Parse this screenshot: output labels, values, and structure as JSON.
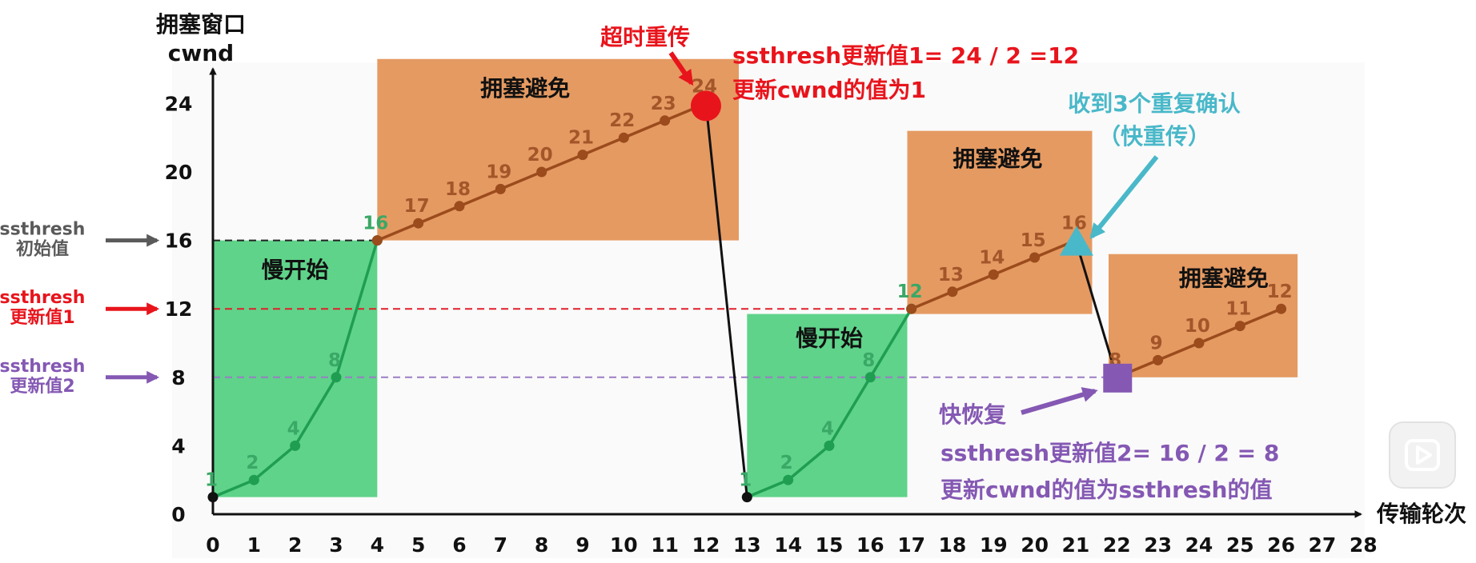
{
  "chart_data": {
    "type": "line",
    "y_title_line1": "拥塞窗口",
    "y_title_line2": "cwnd",
    "x_title": "传输轮次",
    "xlim": [
      0,
      28
    ],
    "ylim": [
      0,
      24
    ],
    "x_ticks": [
      "0",
      "1",
      "2",
      "3",
      "4",
      "5",
      "6",
      "7",
      "8",
      "9",
      "10",
      "11",
      "12",
      "13",
      "14",
      "15",
      "16",
      "17",
      "18",
      "19",
      "20",
      "21",
      "22",
      "23",
      "24",
      "25",
      "26",
      "27",
      "28"
    ],
    "y_ticks": [
      "0",
      "4",
      "8",
      "12",
      "16",
      "20",
      "24"
    ],
    "colors": {
      "slow_start": "#5fd38a",
      "congestion_avoidance": "#e59a62",
      "ss_line": "#1f9e52",
      "ca_line": "#9b4b1c",
      "timeout": "#e8141c",
      "fast_retx": "#49b8c9",
      "fast_recovery": "#8458b3",
      "ssthresh_init": "#5a5a5a"
    },
    "series": [
      {
        "segment": "slow-start-1",
        "points": [
          {
            "x": 0,
            "y": 1,
            "label": "1"
          },
          {
            "x": 1,
            "y": 2,
            "label": "2"
          },
          {
            "x": 2,
            "y": 4,
            "label": "4"
          },
          {
            "x": 3,
            "y": 8,
            "label": "8"
          },
          {
            "x": 4,
            "y": 16,
            "label": "16"
          }
        ]
      },
      {
        "segment": "congestion-avoidance-1",
        "points": [
          {
            "x": 4,
            "y": 16,
            "label": ""
          },
          {
            "x": 5,
            "y": 17,
            "label": "17"
          },
          {
            "x": 6,
            "y": 18,
            "label": "18"
          },
          {
            "x": 7,
            "y": 19,
            "label": "19"
          },
          {
            "x": 8,
            "y": 20,
            "label": "20"
          },
          {
            "x": 9,
            "y": 21,
            "label": "21"
          },
          {
            "x": 10,
            "y": 22,
            "label": "22"
          },
          {
            "x": 11,
            "y": 23,
            "label": "23"
          },
          {
            "x": 12,
            "y": 24,
            "label": "24"
          }
        ]
      },
      {
        "segment": "slow-start-2",
        "points": [
          {
            "x": 13,
            "y": 1,
            "label": "1"
          },
          {
            "x": 14,
            "y": 2,
            "label": "2"
          },
          {
            "x": 15,
            "y": 4,
            "label": "4"
          },
          {
            "x": 16,
            "y": 8,
            "label": "8"
          },
          {
            "x": 17,
            "y": 12,
            "label": "12"
          }
        ]
      },
      {
        "segment": "congestion-avoidance-2",
        "points": [
          {
            "x": 17,
            "y": 12,
            "label": ""
          },
          {
            "x": 18,
            "y": 13,
            "label": "13"
          },
          {
            "x": 19,
            "y": 14,
            "label": "14"
          },
          {
            "x": 20,
            "y": 15,
            "label": "15"
          },
          {
            "x": 21,
            "y": 16,
            "label": "16"
          }
        ]
      },
      {
        "segment": "congestion-avoidance-3",
        "points": [
          {
            "x": 22,
            "y": 8,
            "label": "8"
          },
          {
            "x": 23,
            "y": 9,
            "label": "9"
          },
          {
            "x": 24,
            "y": 10,
            "label": "10"
          },
          {
            "x": 25,
            "y": 11,
            "label": "11"
          },
          {
            "x": 26,
            "y": 12,
            "label": "12"
          }
        ]
      }
    ],
    "drops": [
      {
        "from": {
          "x": 12,
          "y": 24
        },
        "to": {
          "x": 13,
          "y": 1
        }
      },
      {
        "from": {
          "x": 21,
          "y": 16
        },
        "to": {
          "x": 22,
          "y": 8
        }
      }
    ],
    "regions": [
      {
        "kind": "slow_start",
        "x0": 0,
        "x1": 4,
        "y0": 1,
        "y1": 16,
        "label": "慢开始",
        "label_x": 2,
        "label_y": 14.3
      },
      {
        "kind": "congestion_avoidance",
        "x0": 4,
        "x1": 12.8,
        "y0": 16,
        "y1": 26.6,
        "label": "拥塞避免",
        "label_x": 7.6,
        "label_y": 24.9
      },
      {
        "kind": "slow_start",
        "x0": 13,
        "x1": 16.9,
        "y0": 1,
        "y1": 11.7,
        "label": "慢开始",
        "label_x": 15,
        "label_y": 10.3
      },
      {
        "kind": "congestion_avoidance",
        "x0": 16.9,
        "x1": 21.4,
        "y0": 11.7,
        "y1": 22.4,
        "label": "拥塞避免",
        "label_x": 19.1,
        "label_y": 20.8
      },
      {
        "kind": "congestion_avoidance",
        "x0": 21.8,
        "x1": 26.4,
        "y0": 8,
        "y1": 15.2,
        "label": "拥塞避免",
        "label_x": 24.6,
        "label_y": 13.8
      }
    ],
    "ssthresh_lines": [
      {
        "y": 16,
        "label_line1": "ssthresh",
        "label_line2": "初始值",
        "color_key": "ssthresh_init",
        "line_color": "#222222",
        "x_end": 4
      },
      {
        "y": 12,
        "label_line1": "ssthresh",
        "label_line2": "更新值1",
        "color_key": "timeout",
        "line_color": "#e0202a",
        "x_end": 17
      },
      {
        "y": 8,
        "label_line1": "ssthresh",
        "label_line2": "更新值2",
        "color_key": "fast_recovery",
        "line_color": "#9a7cc4",
        "x_end": 22
      }
    ],
    "events": {
      "timeout": {
        "x": 12,
        "y": 24,
        "label": "超时重传"
      },
      "fast_retransmit": {
        "x": 21,
        "y": 16,
        "label_line1": "收到3个重复确认",
        "label_line2": "（快重传）"
      },
      "fast_recovery": {
        "x": 22,
        "y": 8,
        "label": "快恢复"
      }
    },
    "annotations": {
      "timeout_line1": "ssthresh更新值1= 24 / 2 =12",
      "timeout_line2": "更新cwnd的值为1",
      "recovery_line1": "ssthresh更新值2= 16 / 2 = 8",
      "recovery_line2": "更新cwnd的值为ssthresh的值"
    }
  },
  "player": {
    "icon": "play-icon"
  }
}
